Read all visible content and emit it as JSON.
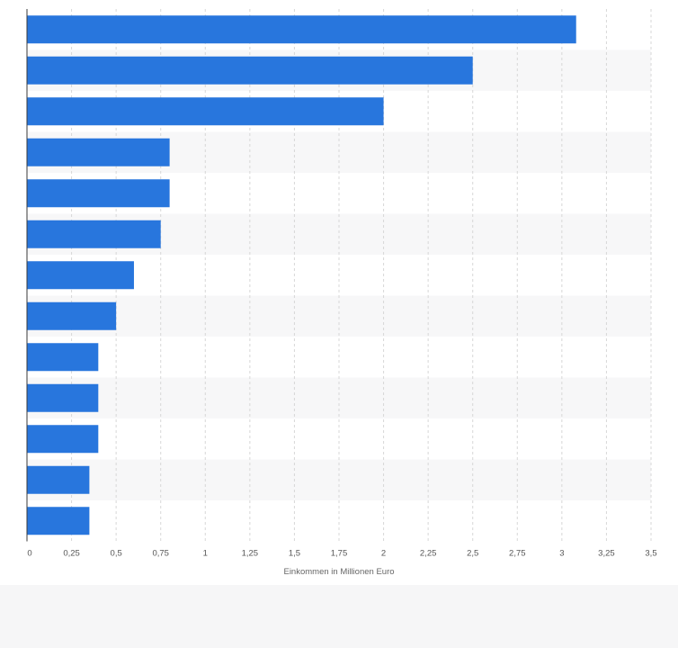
{
  "chart_data": {
    "type": "bar",
    "orientation": "horizontal",
    "categories": [
      "",
      "",
      "",
      "",
      "",
      "",
      "",
      "",
      "",
      "",
      "",
      "",
      ""
    ],
    "values": [
      3.08,
      2.5,
      2.0,
      0.8,
      0.8,
      0.75,
      0.6,
      0.5,
      0.4,
      0.4,
      0.4,
      0.35,
      0.35
    ],
    "xlabel": "Einkommen in Millionen Euro",
    "xlim": [
      0,
      3.5
    ],
    "xticks": [
      {
        "value": 0,
        "label": "0"
      },
      {
        "value": 0.25,
        "label": "0,25"
      },
      {
        "value": 0.5,
        "label": "0,5"
      },
      {
        "value": 0.75,
        "label": "0,75"
      },
      {
        "value": 1,
        "label": "1"
      },
      {
        "value": 1.25,
        "label": "1,25"
      },
      {
        "value": 1.5,
        "label": "1,5"
      },
      {
        "value": 1.75,
        "label": "1,75"
      },
      {
        "value": 2,
        "label": "2"
      },
      {
        "value": 2.25,
        "label": "2,25"
      },
      {
        "value": 2.5,
        "label": "2,5"
      },
      {
        "value": 2.75,
        "label": "2,75"
      },
      {
        "value": 3,
        "label": "3"
      },
      {
        "value": 3.25,
        "label": "3,25"
      },
      {
        "value": 3.5,
        "label": "3,5"
      }
    ],
    "grid": true,
    "legend": "none",
    "colors": {
      "bar": "#2876dd",
      "band_even": "#ffffff",
      "band_odd": "#f7f7f8",
      "gridline": "#d7d7d7",
      "axis": "#3a3a3a",
      "tick_label": "#555555"
    }
  }
}
